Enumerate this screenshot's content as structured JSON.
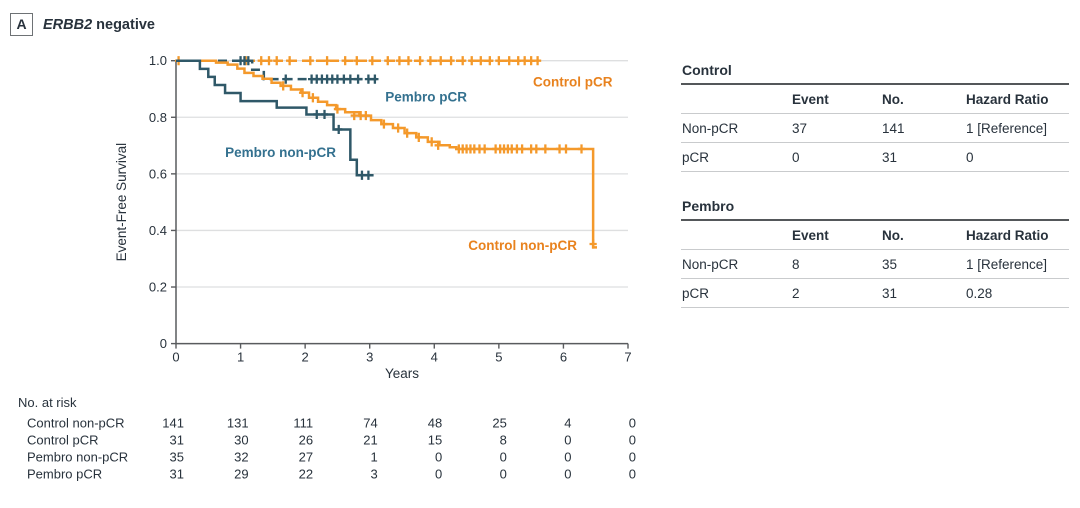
{
  "panel": {
    "label": "A",
    "title_gene": "ERBB2",
    "title_rest": "negative"
  },
  "colors": {
    "orange": "#F4992B",
    "orange_label": "#E8821E",
    "teal": "#2F5868",
    "teal_label": "#34718F",
    "text": "#28323C",
    "axis": "#595B5E",
    "grid": "#DEDFE0",
    "rule_dark": "#54575A",
    "rule_light": "#C9CBCD"
  },
  "chart_data": {
    "type": "line",
    "subtype": "kaplan-meier-step",
    "title": "ERBB2 negative",
    "xlabel": "Years",
    "ylabel": "Event-Free Survival",
    "xlim": [
      0,
      7
    ],
    "ylim": [
      0,
      1.0
    ],
    "xticks": [
      0,
      1,
      2,
      3,
      4,
      5,
      6,
      7
    ],
    "xtick_labels": [
      "0",
      "1",
      "2",
      "3",
      "4",
      "5",
      "6",
      "7"
    ],
    "yticks": [
      0,
      0.2,
      0.4,
      0.6,
      0.8,
      1.0
    ],
    "ytick_labels": [
      "0",
      "0.2",
      "0.4",
      "0.6",
      "0.8",
      "1.0"
    ],
    "grid": "horizontal",
    "series": [
      {
        "name": "Control pCR",
        "color": "#F4992B",
        "label_color": "#E8821E",
        "dashed": true,
        "steps": [
          [
            0,
            1.0
          ]
        ],
        "end": 5.62,
        "censors": [
          [
            0.04,
            1.0
          ],
          [
            1.08,
            1.0
          ],
          [
            1.32,
            1.0
          ],
          [
            1.44,
            1.0
          ],
          [
            1.56,
            1.0
          ],
          [
            1.76,
            1.0
          ],
          [
            2.08,
            1.0
          ],
          [
            2.34,
            1.0
          ],
          [
            2.62,
            1.0
          ],
          [
            2.8,
            1.0
          ],
          [
            3.04,
            1.0
          ],
          [
            3.28,
            1.0
          ],
          [
            3.46,
            1.0
          ],
          [
            3.6,
            1.0
          ],
          [
            3.78,
            1.0
          ],
          [
            3.94,
            1.0
          ],
          [
            4.1,
            1.0
          ],
          [
            4.26,
            1.0
          ],
          [
            4.44,
            1.0
          ],
          [
            4.58,
            1.0
          ],
          [
            4.72,
            1.0
          ],
          [
            4.86,
            1.0
          ],
          [
            5.0,
            1.0
          ],
          [
            5.16,
            1.0
          ],
          [
            5.3,
            1.0
          ],
          [
            5.4,
            1.0
          ],
          [
            5.5,
            1.0
          ],
          [
            5.6,
            1.0
          ]
        ],
        "label": {
          "x": 6.76,
          "y": 0.925,
          "anchor": "end"
        }
      },
      {
        "name": "Pembro pCR",
        "color": "#2F5868",
        "label_color": "#34718F",
        "dashed": true,
        "steps": [
          [
            0,
            1.0
          ],
          [
            1.18,
            0.968
          ],
          [
            1.36,
            0.935
          ]
        ],
        "end": 3.12,
        "censors": [
          [
            1.0,
            1.0
          ],
          [
            1.06,
            1.0
          ],
          [
            1.12,
            1.0
          ],
          [
            1.7,
            0.935
          ],
          [
            2.1,
            0.935
          ],
          [
            2.18,
            0.935
          ],
          [
            2.26,
            0.935
          ],
          [
            2.34,
            0.935
          ],
          [
            2.42,
            0.935
          ],
          [
            2.5,
            0.935
          ],
          [
            2.6,
            0.935
          ],
          [
            2.7,
            0.935
          ],
          [
            2.82,
            0.935
          ],
          [
            2.98,
            0.935
          ],
          [
            3.08,
            0.935
          ]
        ],
        "label": {
          "x": 3.24,
          "y": 0.872,
          "anchor": "start"
        }
      },
      {
        "name": "Control non-pCR",
        "color": "#F4992B",
        "label_color": "#E8821E",
        "dashed": false,
        "steps": [
          [
            0,
            1.0
          ],
          [
            0.62,
            0.993
          ],
          [
            0.8,
            0.986
          ],
          [
            0.95,
            0.972
          ],
          [
            1.06,
            0.957
          ],
          [
            1.2,
            0.946
          ],
          [
            1.34,
            0.936
          ],
          [
            1.48,
            0.922
          ],
          [
            1.62,
            0.911
          ],
          [
            1.78,
            0.898
          ],
          [
            1.94,
            0.887
          ],
          [
            2.06,
            0.869
          ],
          [
            2.2,
            0.855
          ],
          [
            2.34,
            0.843
          ],
          [
            2.48,
            0.829
          ],
          [
            2.62,
            0.818
          ],
          [
            2.84,
            0.806
          ],
          [
            3.02,
            0.79
          ],
          [
            3.18,
            0.776
          ],
          [
            3.36,
            0.762
          ],
          [
            3.54,
            0.744
          ],
          [
            3.72,
            0.729
          ],
          [
            3.9,
            0.713
          ],
          [
            4.08,
            0.701
          ],
          [
            4.24,
            0.694
          ],
          [
            4.34,
            0.688
          ],
          [
            6.46,
            0.34
          ]
        ],
        "end": 6.52,
        "censors": [
          [
            1.66,
            0.911
          ],
          [
            1.96,
            0.887
          ],
          [
            2.12,
            0.869
          ],
          [
            2.5,
            0.829
          ],
          [
            2.76,
            0.806
          ],
          [
            2.86,
            0.806
          ],
          [
            2.94,
            0.806
          ],
          [
            3.22,
            0.776
          ],
          [
            3.44,
            0.762
          ],
          [
            3.58,
            0.744
          ],
          [
            3.76,
            0.729
          ],
          [
            3.96,
            0.713
          ],
          [
            4.06,
            0.701
          ],
          [
            4.38,
            0.688
          ],
          [
            4.44,
            0.688
          ],
          [
            4.5,
            0.688
          ],
          [
            4.56,
            0.688
          ],
          [
            4.62,
            0.688
          ],
          [
            4.7,
            0.688
          ],
          [
            4.78,
            0.688
          ],
          [
            4.95,
            0.688
          ],
          [
            5.02,
            0.688
          ],
          [
            5.08,
            0.688
          ],
          [
            5.14,
            0.688
          ],
          [
            5.2,
            0.688
          ],
          [
            5.28,
            0.688
          ],
          [
            5.36,
            0.688
          ],
          [
            5.5,
            0.688
          ],
          [
            5.58,
            0.688
          ],
          [
            5.72,
            0.688
          ],
          [
            5.94,
            0.688
          ],
          [
            6.04,
            0.688
          ],
          [
            6.28,
            0.688
          ],
          [
            6.46,
            0.352
          ]
        ],
        "label": {
          "x": 6.21,
          "y": 0.347,
          "anchor": "end"
        }
      },
      {
        "name": "Pembro non-pCR",
        "color": "#2F5868",
        "label_color": "#34718F",
        "dashed": false,
        "steps": [
          [
            0,
            1.0
          ],
          [
            0.37,
            0.971
          ],
          [
            0.5,
            0.943
          ],
          [
            0.6,
            0.914
          ],
          [
            0.76,
            0.886
          ],
          [
            1.0,
            0.857
          ],
          [
            1.56,
            0.834
          ],
          [
            2.02,
            0.81
          ],
          [
            2.44,
            0.757
          ],
          [
            2.7,
            0.65
          ],
          [
            2.8,
            0.595
          ]
        ],
        "end": 3.06,
        "censors": [
          [
            2.18,
            0.81
          ],
          [
            2.3,
            0.81
          ],
          [
            2.52,
            0.757
          ],
          [
            2.88,
            0.595
          ],
          [
            2.98,
            0.595
          ]
        ],
        "label": {
          "x": 0.76,
          "y": 0.675,
          "anchor": "start"
        }
      }
    ],
    "at_risk": {
      "title": "No. at risk",
      "rows": [
        {
          "label": "Control non-pCR",
          "values": [
            "141",
            "131",
            "111",
            "74",
            "48",
            "25",
            "4",
            "0"
          ]
        },
        {
          "label": "Control pCR",
          "values": [
            "31",
            "30",
            "26",
            "21",
            "15",
            "8",
            "0",
            "0"
          ]
        },
        {
          "label": "Pembro non-pCR",
          "values": [
            "35",
            "32",
            "27",
            "1",
            "0",
            "0",
            "0",
            "0"
          ]
        },
        {
          "label": "Pembro pCR",
          "values": [
            "31",
            "29",
            "22",
            "3",
            "0",
            "0",
            "0",
            "0"
          ]
        }
      ]
    }
  },
  "tables": [
    {
      "title": "Control",
      "columns": [
        "",
        "Event",
        "No.",
        "Hazard Ratio"
      ],
      "rows": [
        {
          "label": "Non-pCR",
          "event": "37",
          "no": "141",
          "hr": "1 [Reference]"
        },
        {
          "label": "pCR",
          "event": "0",
          "no": "31",
          "hr": "0"
        }
      ]
    },
    {
      "title": "Pembro",
      "columns": [
        "",
        "Event",
        "No.",
        "Hazard Ratio"
      ],
      "rows": [
        {
          "label": "Non-pCR",
          "event": "8",
          "no": "35",
          "hr": "1 [Reference]"
        },
        {
          "label": "pCR",
          "event": "2",
          "no": "31",
          "hr": "0.28"
        }
      ]
    }
  ]
}
